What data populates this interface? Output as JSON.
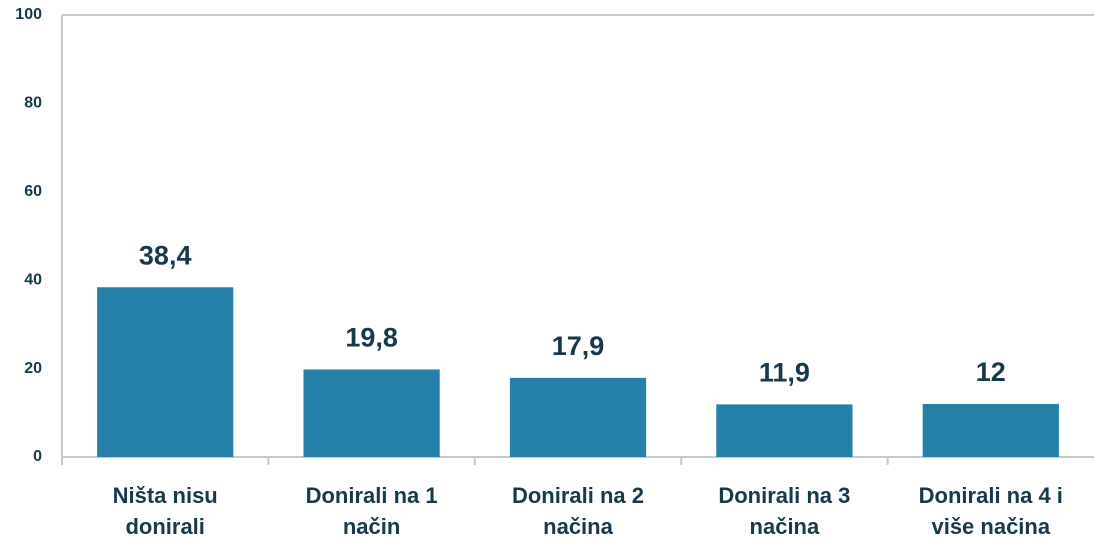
{
  "chart_data": {
    "type": "bar",
    "categories": [
      "Ništa nisu donirali",
      "Donirali na 1 način",
      "Donirali na 2 načina",
      "Donirali na 3 načina",
      "Donirali na 4 i više načina"
    ],
    "values": [
      38.4,
      19.8,
      17.9,
      11.9,
      12
    ],
    "value_labels": [
      "38,4",
      "19,8",
      "17,9",
      "11,9",
      "12"
    ],
    "color": "#2580a9",
    "ylim": [
      0,
      100
    ],
    "yticks": [
      0,
      20,
      40,
      60,
      80,
      100
    ],
    "grid": false
  }
}
